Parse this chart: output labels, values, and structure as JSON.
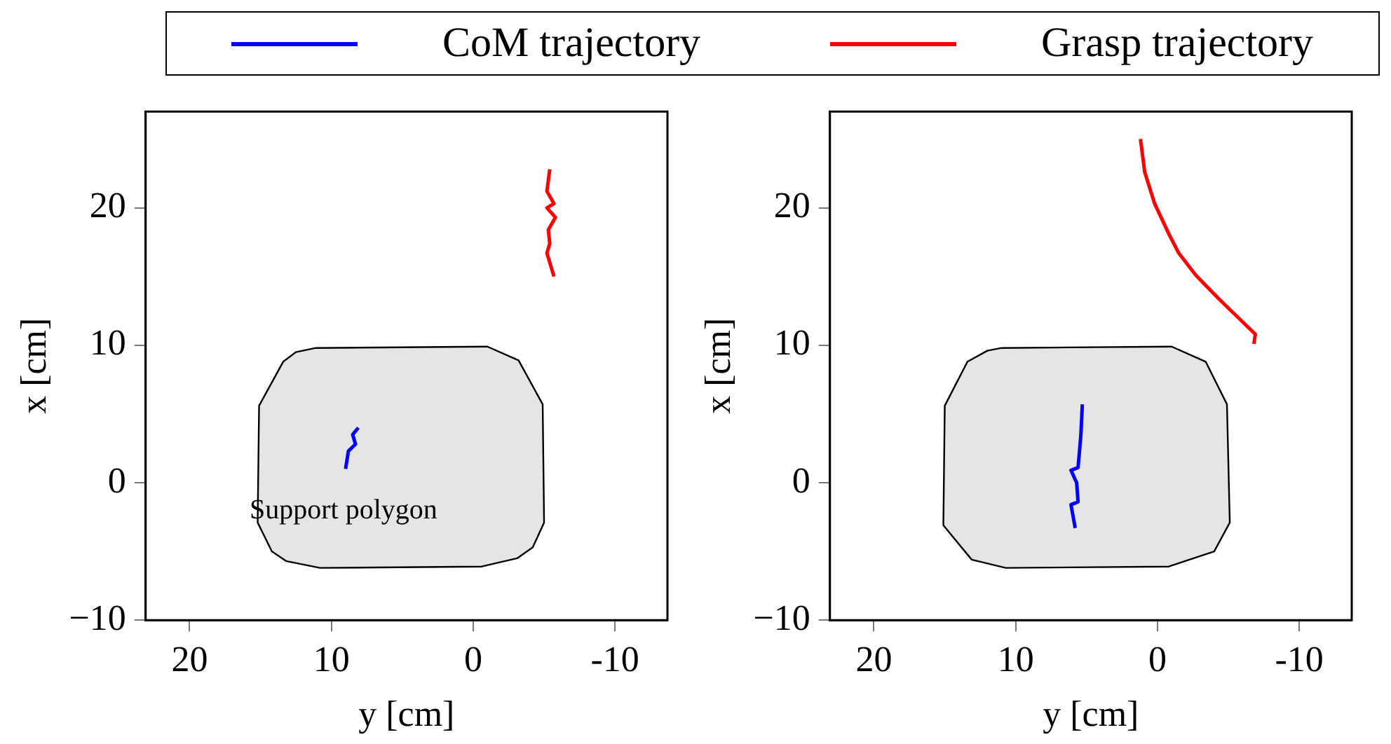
{
  "chart_data": [
    {
      "type": "line",
      "xlabel": "y [cm]",
      "ylabel": "x [cm]",
      "xlim": [
        23.1,
        -13.7
      ],
      "ylim": [
        -10,
        27
      ],
      "xticks": [
        20,
        10,
        0,
        -10
      ],
      "yticks": [
        20,
        10,
        0,
        {
          "value": -10,
          "label": "−10"
        }
      ],
      "legend": "top",
      "grid": false,
      "annotations": [
        "Support polygon"
      ],
      "series": [
        {
          "type": "area",
          "color": "#e5e5e5",
          "x": [
            11.1,
            -1.0,
            -3.2,
            -4.9,
            -5.0,
            -4.2,
            -3.1,
            -0.6,
            10.8,
            13.2,
            14.2,
            15.2,
            15.1,
            13.4,
            12.5,
            11.1
          ],
          "values": [
            9.8,
            9.9,
            8.9,
            5.7,
            -2.9,
            -4.7,
            -5.5,
            -6.1,
            -6.2,
            -5.7,
            -5.0,
            -2.9,
            5.6,
            8.8,
            9.5,
            9.8
          ]
        },
        {
          "name": "CoM trajectory",
          "color": "#0000ff",
          "x": [
            8.1,
            8.5,
            8.3,
            8.8,
            9.0
          ],
          "values": [
            4.0,
            3.5,
            2.8,
            2.3,
            1.0
          ]
        },
        {
          "name": "Grasp trajectory",
          "color": "#ff0000",
          "x": [
            -5.4,
            -5.2,
            -5.7,
            -5.2,
            -5.8,
            -5.3,
            -5.4,
            -5.2,
            -5.7
          ],
          "values": [
            22.8,
            21.2,
            20.3,
            20.0,
            19.3,
            18.4,
            17.4,
            16.7,
            15.0
          ]
        }
      ]
    },
    {
      "type": "line",
      "xlabel": "y [cm]",
      "ylabel": "x [cm]",
      "xlim": [
        23.1,
        -13.7
      ],
      "ylim": [
        -10,
        27
      ],
      "xticks": [
        20,
        10,
        0,
        -10
      ],
      "yticks": [
        20,
        10,
        0,
        {
          "value": -10,
          "label": "−10"
        }
      ],
      "grid": false,
      "series": [
        {
          "type": "area",
          "color": "#e5e5e5",
          "x": [
            11.0,
            -1.0,
            -3.4,
            -4.9,
            -5.1,
            -4.0,
            -0.8,
            10.7,
            13.1,
            15.1,
            15.0,
            13.4,
            12.0,
            11.0
          ],
          "values": [
            9.8,
            9.9,
            8.8,
            5.7,
            -2.9,
            -5.0,
            -6.1,
            -6.2,
            -5.6,
            -3.1,
            5.6,
            8.8,
            9.6,
            9.8
          ]
        },
        {
          "color": "#0000ff",
          "x": [
            5.3,
            5.4,
            5.6,
            6.1,
            5.7,
            5.6,
            6.1,
            5.8
          ],
          "values": [
            5.7,
            3.5,
            1.1,
            0.9,
            0.0,
            -1.4,
            -1.6,
            -3.3
          ]
        },
        {
          "color": "#ff0000",
          "x": [
            1.2,
            0.9,
            0.2,
            -0.8,
            -1.5,
            -2.7,
            -4.3,
            -5.7,
            -6.9,
            -6.8
          ],
          "values": [
            25.0,
            22.6,
            20.3,
            18.1,
            16.7,
            15.1,
            13.4,
            12.0,
            10.8,
            10.1
          ]
        }
      ]
    }
  ]
}
